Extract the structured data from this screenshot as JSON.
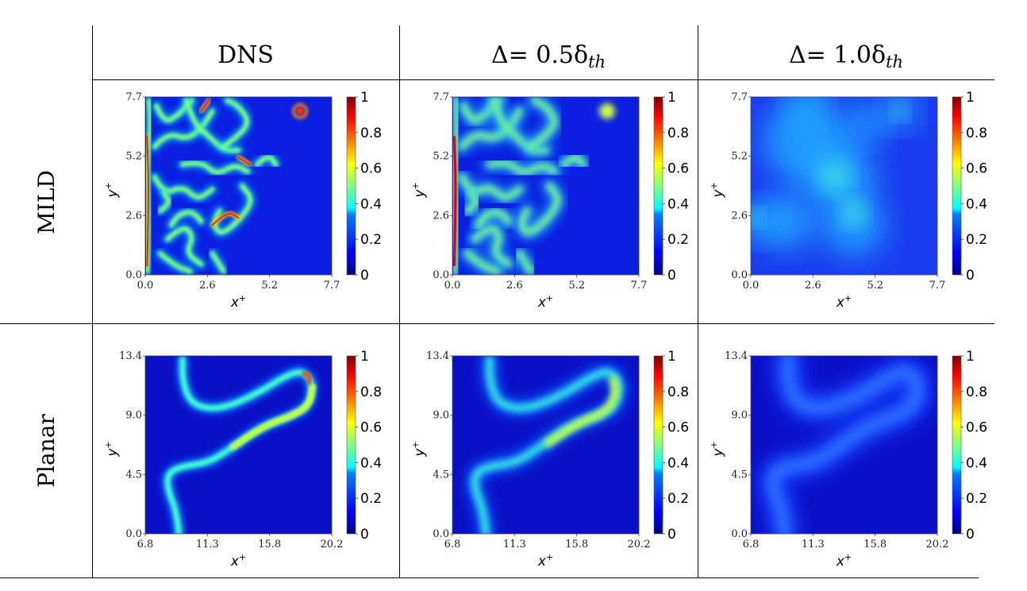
{
  "header": {
    "col1": "DNS",
    "col2_prefix": "Δ= 0.5δ",
    "col3_prefix": "Δ= 1.0δ",
    "col_sub": "th"
  },
  "rows": [
    {
      "label": "MILD",
      "x_ticks": [
        "0.0",
        "2.6",
        "5.2",
        "7.7"
      ],
      "y_ticks": [
        "0.0",
        "2.6",
        "5.2",
        "7.7"
      ]
    },
    {
      "label": "Planar",
      "x_ticks": [
        "6.8",
        "11.3",
        "15.8",
        "20.2"
      ],
      "y_ticks": [
        "0.0",
        "4.5",
        "9.0",
        "13.4"
      ]
    }
  ],
  "axis_labels": {
    "x": "x",
    "y": "y",
    "sup": "+"
  },
  "colorbar": {
    "ticks": [
      "1",
      "0.8",
      "0.6",
      "0.4",
      "0.2",
      "0"
    ]
  },
  "colors": {
    "background_field": "#0a1fe0",
    "colormap": "jet"
  }
}
